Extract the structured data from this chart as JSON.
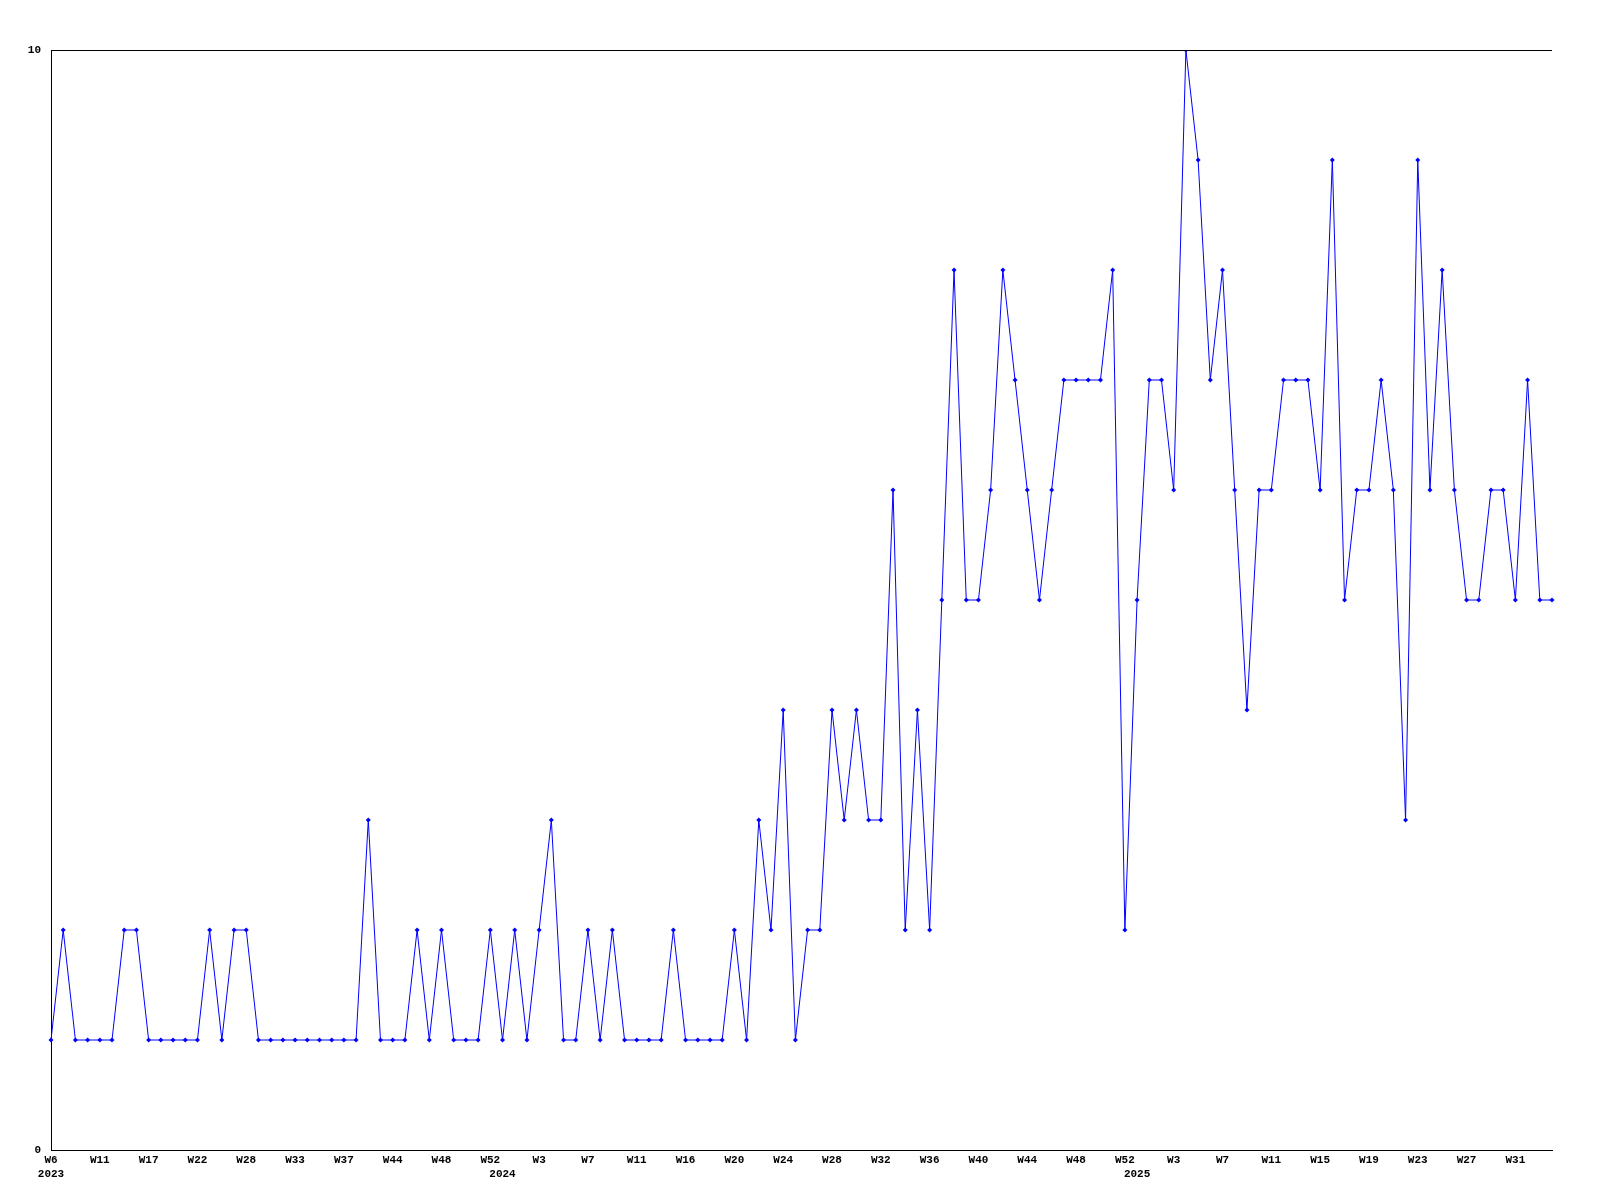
{
  "chart_data": {
    "type": "line",
    "categories": [
      "W6\n2023",
      null,
      null,
      null,
      "W11",
      null,
      null,
      null,
      "W17",
      null,
      null,
      null,
      "W22",
      null,
      null,
      null,
      "W28",
      null,
      null,
      null,
      "W33",
      null,
      null,
      null,
      "W37",
      null,
      null,
      null,
      "W44",
      null,
      null,
      null,
      "W48",
      null,
      null,
      null,
      "W52",
      "\n2024",
      null,
      null,
      "W3",
      null,
      null,
      null,
      "W7",
      null,
      null,
      null,
      "W11",
      null,
      null,
      null,
      "W16",
      null,
      null,
      null,
      "W20",
      null,
      null,
      null,
      "W24",
      null,
      null,
      null,
      "W28",
      null,
      null,
      null,
      "W32",
      null,
      null,
      null,
      "W36",
      null,
      null,
      null,
      "W40",
      null,
      null,
      null,
      "W44",
      null,
      null,
      null,
      "W48",
      null,
      null,
      null,
      "W52",
      "\n2025",
      null,
      null,
      "W3",
      null,
      null,
      null,
      "W7",
      null,
      null,
      null,
      "W11",
      null,
      null,
      null,
      "W15",
      null,
      null,
      null,
      "W19",
      null,
      null,
      null,
      "W23",
      null,
      null,
      null,
      "W27",
      null,
      null,
      null,
      "W31",
      null,
      null,
      null
    ],
    "series": [
      {
        "color": "#0000ff",
        "values": [
          1,
          2,
          1,
          1,
          1,
          1,
          2,
          2,
          1,
          1,
          1,
          1,
          1,
          2,
          1,
          2,
          2,
          1,
          1,
          1,
          1,
          1,
          1,
          1,
          1,
          1,
          3,
          1,
          1,
          1,
          2,
          1,
          2,
          1,
          1,
          1,
          2,
          1,
          2,
          1,
          2,
          3,
          1,
          1,
          2,
          1,
          2,
          1,
          1,
          1,
          1,
          2,
          1,
          1,
          1,
          1,
          2,
          1,
          3,
          2,
          4,
          1,
          2,
          2,
          4,
          3,
          4,
          3,
          3,
          6,
          2,
          4,
          2,
          5,
          8,
          5,
          5,
          6,
          8,
          7,
          6,
          5,
          6,
          7,
          7,
          7,
          7,
          8,
          2,
          5,
          7,
          7,
          6,
          10,
          9,
          7,
          8,
          6,
          4,
          6,
          6,
          7,
          7,
          7,
          6,
          9,
          5,
          6,
          6,
          7,
          6,
          3,
          9,
          6,
          8,
          6,
          5,
          5,
          6,
          6,
          5,
          7,
          5,
          5
        ]
      }
    ],
    "ylim": [
      0,
      10
    ],
    "yticks": [
      0,
      10
    ],
    "grid": false,
    "legend": false,
    "marker": "diamond",
    "line_style": "solid"
  }
}
